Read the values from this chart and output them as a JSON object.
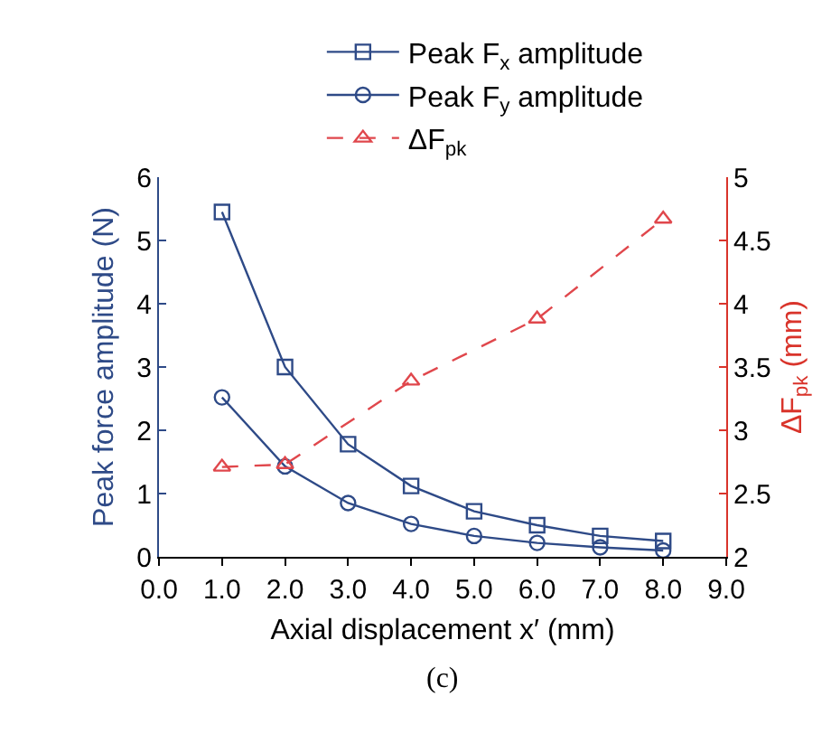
{
  "chart_data": {
    "type": "line",
    "xlabel": "Axial displacement x′ (mm)",
    "ylabel": "Peak force amplitude (N)",
    "y2label": "ΔF$_{pk}$ (mm)",
    "xlim": [
      0,
      9
    ],
    "xticks": [
      {
        "value": 0,
        "label": "0.0"
      },
      {
        "value": 1,
        "label": "1.0"
      },
      {
        "value": 2,
        "label": "2.0"
      },
      {
        "value": 3,
        "label": "3.0"
      },
      {
        "value": 4,
        "label": "4.0"
      },
      {
        "value": 5,
        "label": "5.0"
      },
      {
        "value": 6,
        "label": "6.0"
      },
      {
        "value": 7,
        "label": "7.0"
      },
      {
        "value": 8,
        "label": "8.0"
      },
      {
        "value": 9,
        "label": "9.0"
      }
    ],
    "ylim": [
      0,
      6
    ],
    "yticks": [
      0,
      1,
      2,
      3,
      4,
      5,
      6
    ],
    "y2lim": [
      2,
      5
    ],
    "y2ticks": [
      2,
      2.5,
      3,
      3.5,
      4,
      4.5,
      5
    ],
    "x": [
      1,
      2,
      3,
      4,
      5,
      6,
      7,
      8
    ],
    "series": [
      {
        "name": "Peak F$_{x}$ amplitude",
        "color": "#2e4a87",
        "marker": "square",
        "line_style": "solid",
        "values": [
          5.45,
          3.0,
          1.78,
          1.12,
          0.72,
          0.5,
          0.33,
          0.25
        ]
      },
      {
        "name": "Peak F$_{y}$ amplitude",
        "color": "#2e4a87",
        "marker": "circle",
        "line_style": "solid",
        "values": [
          2.52,
          1.43,
          0.85,
          0.52,
          0.33,
          0.22,
          0.15,
          0.1
        ]
      },
      {
        "name": "ΔF$_{pk}$",
        "color": "#e0474c",
        "marker": "triangle",
        "line_style": "dashed",
        "axis": "y2",
        "x": [
          1,
          2,
          4,
          6,
          8
        ],
        "values": [
          2.71,
          2.73,
          3.39,
          3.88,
          4.67
        ]
      }
    ],
    "legend": "top",
    "grid": false,
    "annotations": [
      "(c)"
    ]
  }
}
